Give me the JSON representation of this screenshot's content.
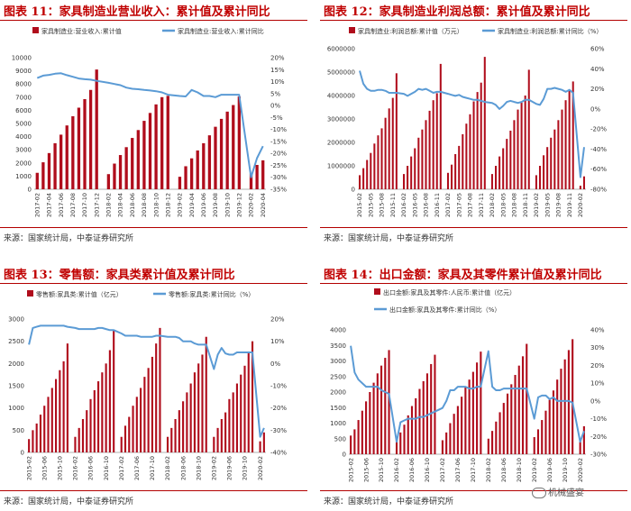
{
  "panels": [
    {
      "title": "图表 11：家具制造业营业收入：累计值及累计同比",
      "source": "来源：国家统计局，中泰证券研究所",
      "chart_data": {
        "type": "bar",
        "legend": [
          "家具制造业:营业收入:累计值",
          "家具制造业:营业收入:累计同比"
        ],
        "categories": [
          "2017-02",
          "2017-03",
          "2017-04",
          "2017-05",
          "2017-06",
          "2017-07",
          "2017-08",
          "2017-09",
          "2017-10",
          "2017-11",
          "2017-12",
          "2018-01",
          "2018-02",
          "2018-03",
          "2018-04",
          "2018-05",
          "2018-06",
          "2018-07",
          "2018-08",
          "2018-09",
          "2018-10",
          "2018-11",
          "2018-12",
          "2019-01",
          "2019-02",
          "2019-03",
          "2019-04",
          "2019-05",
          "2019-06",
          "2019-07",
          "2019-08",
          "2019-09",
          "2019-10",
          "2019-11",
          "2019-12",
          "2020-01",
          "2020-02",
          "2020-03",
          "2020-04"
        ],
        "tick_labels": [
          "2017-02",
          "2017-04",
          "2017-06",
          "2017-08",
          "2017-10",
          "2017-12",
          "2018-02",
          "2018-04",
          "2018-06",
          "2018-08",
          "2018-10",
          "2018-12",
          "2019-02",
          "2019-04",
          "2019-06",
          "2019-08",
          "2019-10",
          "2019-12",
          "2020-02",
          "2020-04"
        ],
        "bars": [
          1250,
          2050,
          2750,
          3500,
          4150,
          4850,
          5550,
          6200,
          6850,
          7550,
          9100,
          null,
          1150,
          1950,
          2600,
          3200,
          3900,
          4500,
          5200,
          5800,
          6450,
          7000,
          7100,
          null,
          950,
          1750,
          2350,
          2950,
          3500,
          4100,
          4750,
          5350,
          5900,
          6400,
          7050,
          null,
          1200,
          1850,
          2200
        ],
        "line": [
          11.5,
          12.5,
          12.8,
          13.3,
          13.5,
          12.7,
          12.0,
          11.3,
          11.0,
          10.8,
          10.3,
          null,
          9.5,
          9.0,
          8.5,
          7.5,
          7.0,
          6.8,
          6.5,
          6.3,
          6.0,
          5.5,
          4.5,
          null,
          4.0,
          3.8,
          6.5,
          5.5,
          4.0,
          4.0,
          3.5,
          4.5,
          4.5,
          4.5,
          4.5,
          null,
          -30.0,
          -22.0,
          -17.0
        ],
        "ylim_left": [
          0,
          10000
        ],
        "yticks_left": [
          "0",
          "1000",
          "2000",
          "3000",
          "4000",
          "5000",
          "6000",
          "7000",
          "8000",
          "9000",
          "10000"
        ],
        "ylim_right": [
          -35,
          20
        ],
        "yticks_right": [
          "-35%",
          "-30%",
          "-25%",
          "-20%",
          "-15%",
          "-10%",
          "-5%",
          "0%",
          "5%",
          "10%",
          "15%",
          "20%"
        ]
      }
    },
    {
      "title": "图表 12：家具制造业利润总额：累计值及累计同比",
      "source": "来源：国家统计局，中泰证券研究所",
      "chart_data": {
        "type": "bar",
        "legend": [
          "家具制造业:利润总额:累计值（万元）",
          "家具制造业:利润总额:累计同比（%）"
        ],
        "categories": [
          "2015-02",
          "2015-03",
          "2015-04",
          "2015-05",
          "2015-06",
          "2015-07",
          "2015-08",
          "2015-09",
          "2015-10",
          "2015-11",
          "2015-12",
          "2016-01",
          "2016-02",
          "2016-03",
          "2016-04",
          "2016-05",
          "2016-06",
          "2016-07",
          "2016-08",
          "2016-09",
          "2016-10",
          "2016-11",
          "2016-12",
          "2017-01",
          "2017-02",
          "2017-03",
          "2017-04",
          "2017-05",
          "2017-06",
          "2017-07",
          "2017-08",
          "2017-09",
          "2017-10",
          "2017-11",
          "2017-12",
          "2018-01",
          "2018-02",
          "2018-03",
          "2018-04",
          "2018-05",
          "2018-06",
          "2018-07",
          "2018-08",
          "2018-09",
          "2018-10",
          "2018-11",
          "2018-12",
          "2019-01",
          "2019-02",
          "2019-03",
          "2019-04",
          "2019-05",
          "2019-06",
          "2019-07",
          "2019-08",
          "2019-09",
          "2019-10",
          "2019-11",
          "2019-12",
          "2020-01",
          "2020-02",
          "2020-03"
        ],
        "tick_labels": [
          "2015-02",
          "2015-05",
          "2015-08",
          "2015-11",
          "2016-02",
          "2016-05",
          "2016-08",
          "2016-11",
          "2017-02",
          "2017-05",
          "2017-08",
          "2017-11",
          "2018-02",
          "2018-05",
          "2018-08",
          "2018-11",
          "2019-02",
          "2019-05",
          "2019-08",
          "2019-11",
          "2020-02"
        ],
        "bars": [
          600000,
          900000,
          1250000,
          1550000,
          1950000,
          2300000,
          2600000,
          3050000,
          3450000,
          3900000,
          4950000,
          null,
          650000,
          1000000,
          1400000,
          1750000,
          2200000,
          2550000,
          2950000,
          3350000,
          3800000,
          4100000,
          5350000,
          null,
          700000,
          1050000,
          1500000,
          1850000,
          2350000,
          2800000,
          3200000,
          3750000,
          4150000,
          4550000,
          5650000,
          null,
          650000,
          1000000,
          1400000,
          1750000,
          2150000,
          2500000,
          2950000,
          3400000,
          3700000,
          4000000,
          5100000,
          null,
          600000,
          1000000,
          1450000,
          1800000,
          2200000,
          2550000,
          2950000,
          3400000,
          3800000,
          4200000,
          4600000,
          null,
          150000,
          550000
        ],
        "line": [
          38,
          25,
          20,
          18,
          18,
          19,
          19,
          18,
          16,
          16,
          16,
          null,
          15,
          13,
          15,
          17,
          20,
          19,
          20,
          18,
          16,
          17,
          17,
          null,
          15,
          14,
          13,
          14,
          12,
          11,
          10,
          9,
          9,
          8,
          7,
          null,
          6,
          4,
          0,
          3,
          7,
          8,
          7,
          6,
          7,
          9,
          9,
          null,
          5,
          4,
          10,
          20,
          20,
          21,
          20,
          19,
          17,
          19,
          16,
          null,
          -68,
          -38
        ],
        "ylim_left": [
          0,
          6000000
        ],
        "yticks_left": [
          "0",
          "1000000",
          "2000000",
          "3000000",
          "4000000",
          "5000000",
          "6000000"
        ],
        "ylim_right": [
          -80,
          60
        ],
        "yticks_right": [
          "-80%",
          "-60%",
          "-40%",
          "-20%",
          "0%",
          "20%",
          "40%",
          "60%"
        ]
      }
    },
    {
      "title": "图表 13：零售额：家具类累计值及累计同比",
      "source": "来源：国家统计局，中泰证券研究所",
      "chart_data": {
        "type": "bar",
        "legend": [
          "零售额:家具类:累计值（亿元）",
          "零售额:家具类:累计同比（%）"
        ],
        "categories": [
          "2015-02",
          "2015-03",
          "2015-04",
          "2015-05",
          "2015-06",
          "2015-07",
          "2015-08",
          "2015-09",
          "2015-10",
          "2015-11",
          "2015-12",
          "2016-01",
          "2016-02",
          "2016-03",
          "2016-04",
          "2016-05",
          "2016-06",
          "2016-07",
          "2016-08",
          "2016-09",
          "2016-10",
          "2016-11",
          "2016-12",
          "2017-01",
          "2017-02",
          "2017-03",
          "2017-04",
          "2017-05",
          "2017-06",
          "2017-07",
          "2017-08",
          "2017-09",
          "2017-10",
          "2017-11",
          "2017-12",
          "2018-01",
          "2018-02",
          "2018-03",
          "2018-04",
          "2018-05",
          "2018-06",
          "2018-07",
          "2018-08",
          "2018-09",
          "2018-10",
          "2018-11",
          "2018-12",
          "2019-01",
          "2019-02",
          "2019-03",
          "2019-04",
          "2019-05",
          "2019-06",
          "2019-07",
          "2019-08",
          "2019-09",
          "2019-10",
          "2019-11",
          "2019-12",
          "2020-01",
          "2020-02",
          "2020-03"
        ],
        "tick_labels": [
          "2015-02",
          "2015-06",
          "2015-10",
          "2016-02",
          "2016-06",
          "2016-10",
          "2017-02",
          "2017-06",
          "2017-10",
          "2018-02",
          "2018-06",
          "2018-10",
          "2019-02",
          "2019-06",
          "2019-10",
          "2020-02"
        ],
        "bars": [
          300,
          500,
          650,
          850,
          1050,
          1250,
          1450,
          1650,
          1850,
          2050,
          2450,
          null,
          350,
          550,
          750,
          950,
          1200,
          1400,
          1600,
          1800,
          2000,
          2300,
          2750,
          null,
          350,
          600,
          800,
          1050,
          1250,
          1450,
          1700,
          1900,
          2150,
          2450,
          2800,
          null,
          350,
          550,
          750,
          950,
          1150,
          1350,
          1550,
          1800,
          2000,
          2200,
          2600,
          null,
          350,
          550,
          750,
          900,
          1200,
          1350,
          1550,
          1750,
          1950,
          2250,
          2500,
          null,
          250,
          450
        ],
        "line": [
          8.5,
          16,
          16.5,
          17,
          17,
          17,
          17,
          17,
          17,
          17,
          16.5,
          null,
          16,
          15.5,
          15.5,
          15.5,
          15.5,
          15.5,
          16,
          16,
          15.5,
          15,
          15,
          null,
          13.5,
          12.5,
          12.5,
          12.5,
          12.5,
          12,
          12,
          12,
          12,
          12.5,
          12.5,
          null,
          12,
          12,
          12,
          11.5,
          10,
          10,
          10,
          9,
          8.5,
          8.5,
          8.5,
          null,
          -2.5,
          4,
          7,
          4.5,
          4,
          4,
          5,
          5,
          5,
          5,
          5,
          null,
          -33,
          -29
        ],
        "ylim_left": [
          0,
          3000
        ],
        "yticks_left": [
          "0",
          "500",
          "1000",
          "1500",
          "2000",
          "2500",
          "3000"
        ],
        "ylim_right": [
          -40,
          20
        ],
        "yticks_right": [
          "-40%",
          "-30%",
          "-20%",
          "-10%",
          "0%",
          "10%",
          "20%"
        ]
      }
    },
    {
      "title": "图表 14：出口金额：家具及其零件累计值及累计同比",
      "source": "来源：国家统计局，中泰证券研究所",
      "chart_data": {
        "type": "bar",
        "legend": [
          "出口金额:家具及其零件:人民币:累计值（亿元）",
          "出口金额:家具及其零件:累计同比（%）"
        ],
        "categories": [
          "2015-02",
          "2015-03",
          "2015-04",
          "2015-05",
          "2015-06",
          "2015-07",
          "2015-08",
          "2015-09",
          "2015-10",
          "2015-11",
          "2015-12",
          "2016-01",
          "2016-02",
          "2016-03",
          "2016-04",
          "2016-05",
          "2016-06",
          "2016-07",
          "2016-08",
          "2016-09",
          "2016-10",
          "2016-11",
          "2016-12",
          "2017-01",
          "2017-02",
          "2017-03",
          "2017-04",
          "2017-05",
          "2017-06",
          "2017-07",
          "2017-08",
          "2017-09",
          "2017-10",
          "2017-11",
          "2017-12",
          "2018-01",
          "2018-02",
          "2018-03",
          "2018-04",
          "2018-05",
          "2018-06",
          "2018-07",
          "2018-08",
          "2018-09",
          "2018-10",
          "2018-11",
          "2018-12",
          "2019-01",
          "2019-02",
          "2019-03",
          "2019-04",
          "2019-05",
          "2019-06",
          "2019-07",
          "2019-08",
          "2019-09",
          "2019-10",
          "2019-11",
          "2019-12",
          "2020-01",
          "2020-02",
          "2020-03"
        ],
        "tick_labels": [
          "2015-02",
          "2015-06",
          "2015-10",
          "2016-02",
          "2016-06",
          "2016-10",
          "2017-02",
          "2017-06",
          "2017-10",
          "2018-02",
          "2018-06",
          "2018-10",
          "2019-02",
          "2019-06",
          "2019-10",
          "2020-02"
        ],
        "bars": [
          600,
          800,
          1100,
          1400,
          1700,
          2000,
          2300,
          2600,
          2850,
          3100,
          3350,
          null,
          450,
          700,
          950,
          1250,
          1550,
          1800,
          2100,
          2350,
          2600,
          2900,
          3200,
          null,
          450,
          700,
          1000,
          1300,
          1550,
          1850,
          2150,
          2400,
          2650,
          2950,
          3300,
          null,
          500,
          750,
          1050,
          1350,
          1650,
          1950,
          2250,
          2550,
          2850,
          3150,
          3550,
          null,
          550,
          800,
          1100,
          1400,
          1750,
          2050,
          2400,
          2750,
          3050,
          3350,
          3700,
          null,
          500,
          900
        ],
        "line": [
          31,
          16,
          12,
          10,
          8,
          8,
          8,
          8,
          6,
          5,
          4,
          null,
          -23,
          -12,
          -11,
          -10,
          -10,
          -10,
          -9,
          -9,
          -8,
          -7,
          -6,
          null,
          -4,
          0,
          6,
          6,
          8,
          8,
          8,
          7,
          7,
          8,
          8,
          null,
          28,
          8,
          6,
          6,
          7,
          7,
          7,
          7,
          7,
          7,
          7,
          null,
          -10,
          2,
          3,
          3,
          1,
          2,
          0,
          0,
          0,
          0,
          -1,
          null,
          -23,
          -17
        ],
        "ylim_left": [
          0,
          4000
        ],
        "yticks_left": [
          "0",
          "500",
          "1000",
          "1500",
          "2000",
          "2500",
          "3000",
          "3500",
          "4000"
        ],
        "ylim_right": [
          -30,
          40
        ],
        "yticks_right": [
          "-30%",
          "-20%",
          "-10%",
          "0%",
          "10%",
          "20%",
          "30%",
          "40%"
        ]
      }
    }
  ],
  "colors": {
    "bar": "#b00d1c",
    "line": "#5b9bd5",
    "title": "#c00000",
    "rule": "#b30000"
  },
  "watermark": {
    "icon": "wechat-icon",
    "text": "机械盛宴"
  }
}
